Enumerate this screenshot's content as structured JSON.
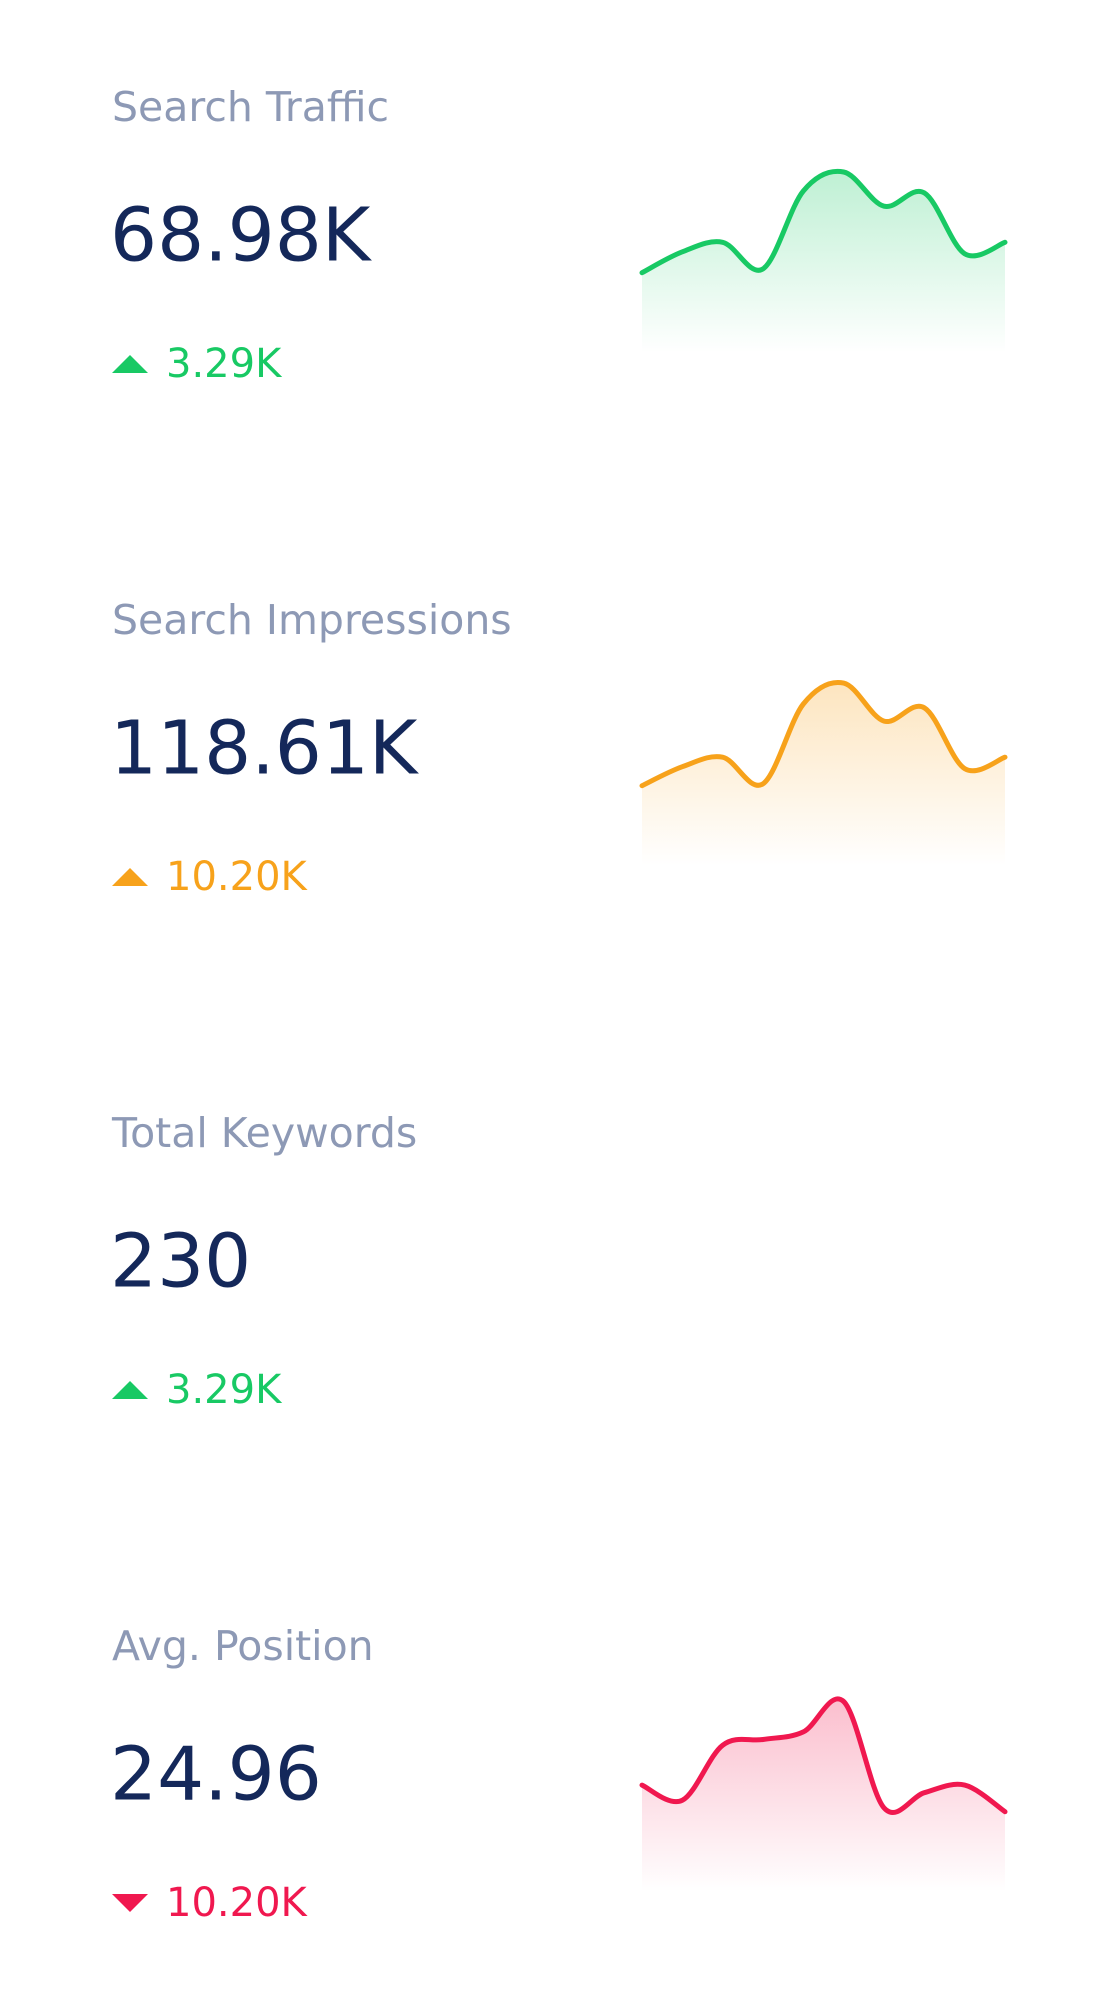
{
  "cards": [
    {
      "label": "Search Traffic",
      "value": "68.98K",
      "delta": "3.29K",
      "direction": "up",
      "color": "#18c964",
      "sparkline": [
        37,
        48,
        53,
        39,
        80,
        90,
        72,
        79,
        47,
        53
      ]
    },
    {
      "label": "Search Impressions",
      "value": "118.61K",
      "delta": "10.20K",
      "direction": "up",
      "color": "#f7a21b",
      "sparkline": [
        37,
        47,
        52,
        38,
        80,
        91,
        71,
        78,
        46,
        52
      ]
    },
    {
      "label": "Total Keywords",
      "value": "230",
      "delta": "3.29K",
      "direction": "up",
      "color": "#18c964"
    },
    {
      "label": "Avg. Position",
      "value": "24.96",
      "delta": "10.20K",
      "direction": "down",
      "color": "#f0184f",
      "sparkline": [
        51,
        43,
        72,
        75,
        79,
        95,
        39,
        47,
        51,
        37
      ]
    }
  ]
}
